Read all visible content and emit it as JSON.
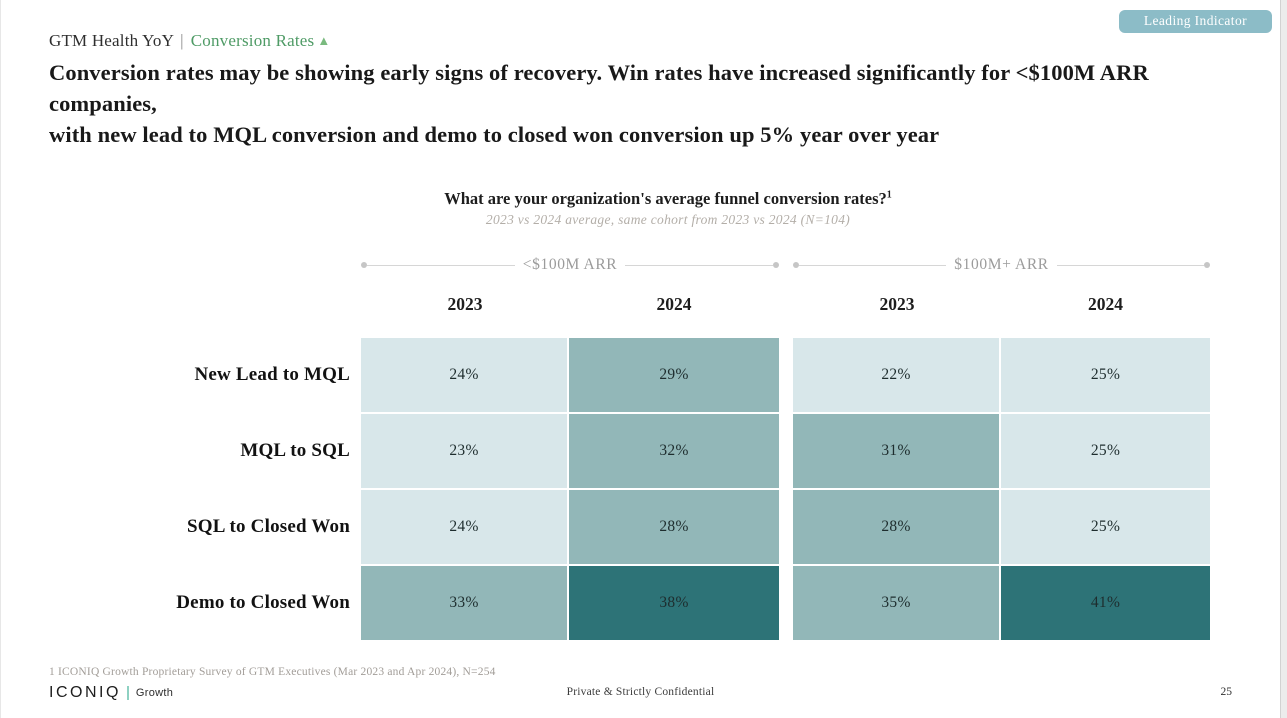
{
  "badge": {
    "label": "Leading Indicator",
    "bg_color": "#8cbcc7"
  },
  "kicker": {
    "prefix": "GTM Health YoY",
    "separator": "|",
    "highlight": "Conversion Rates",
    "highlight_color": "#4f9b66",
    "arrow": "▲",
    "arrow_color": "#7aba7f"
  },
  "headline": {
    "lines": [
      "Conversion rates may be showing early signs of recovery. Win rates have increased significantly for <$100M ARR companies,",
      "with new lead to MQL conversion and demo to closed won conversion up 5% year over year"
    ]
  },
  "chart_data": {
    "type": "heatmap",
    "title": "What are your organization's average funnel conversion rates?",
    "footnote_marker": "1",
    "subtitle": "2023 vs 2024 average, same cohort from 2023 vs 2024 (N=104)",
    "column_groups": [
      {
        "label": "<$100M ARR",
        "years": [
          "2023",
          "2024"
        ]
      },
      {
        "label": "$100M+ ARR",
        "years": [
          "2023",
          "2024"
        ]
      }
    ],
    "rows": [
      {
        "label": "New Lead to MQL",
        "values": [
          "24%",
          "29%",
          "22%",
          "25%"
        ],
        "shades": [
          "light",
          "medium",
          "light",
          "light"
        ]
      },
      {
        "label": "MQL to SQL",
        "values": [
          "23%",
          "32%",
          "31%",
          "25%"
        ],
        "shades": [
          "light",
          "medium",
          "medium",
          "light"
        ]
      },
      {
        "label": "SQL to Closed Won",
        "values": [
          "24%",
          "28%",
          "28%",
          "25%"
        ],
        "shades": [
          "light",
          "medium",
          "medium",
          "light"
        ]
      },
      {
        "label": "Demo to Closed Won",
        "values": [
          "33%",
          "38%",
          "35%",
          "41%"
        ],
        "shades": [
          "medium",
          "dark",
          "medium",
          "dark"
        ]
      }
    ],
    "palette": {
      "light": "#d8e7ea",
      "medium": "#92b7b8",
      "dark": "#2d7377"
    },
    "values_numeric": {
      "categories": [
        "New Lead to MQL",
        "MQL to SQL",
        "SQL to Closed Won",
        "Demo to Closed Won"
      ],
      "series": [
        {
          "name": "<$100M ARR 2023",
          "values": [
            24,
            23,
            24,
            33
          ]
        },
        {
          "name": "<$100M ARR 2024",
          "values": [
            29,
            32,
            28,
            38
          ]
        },
        {
          "name": "$100M+ ARR 2023",
          "values": [
            22,
            31,
            28,
            35
          ]
        },
        {
          "name": "$100M+ ARR 2024",
          "values": [
            25,
            25,
            25,
            41
          ]
        }
      ],
      "unit": "%"
    }
  },
  "footnote": "1 ICONIQ Growth Proprietary Survey of GTM Executives (Mar 2023 and Apr 2024), N=254",
  "footer": {
    "logo_text": "ICONIQ",
    "logo_sub": "Growth",
    "confidential": "Private & Strictly Confidential",
    "page_number": "25"
  }
}
